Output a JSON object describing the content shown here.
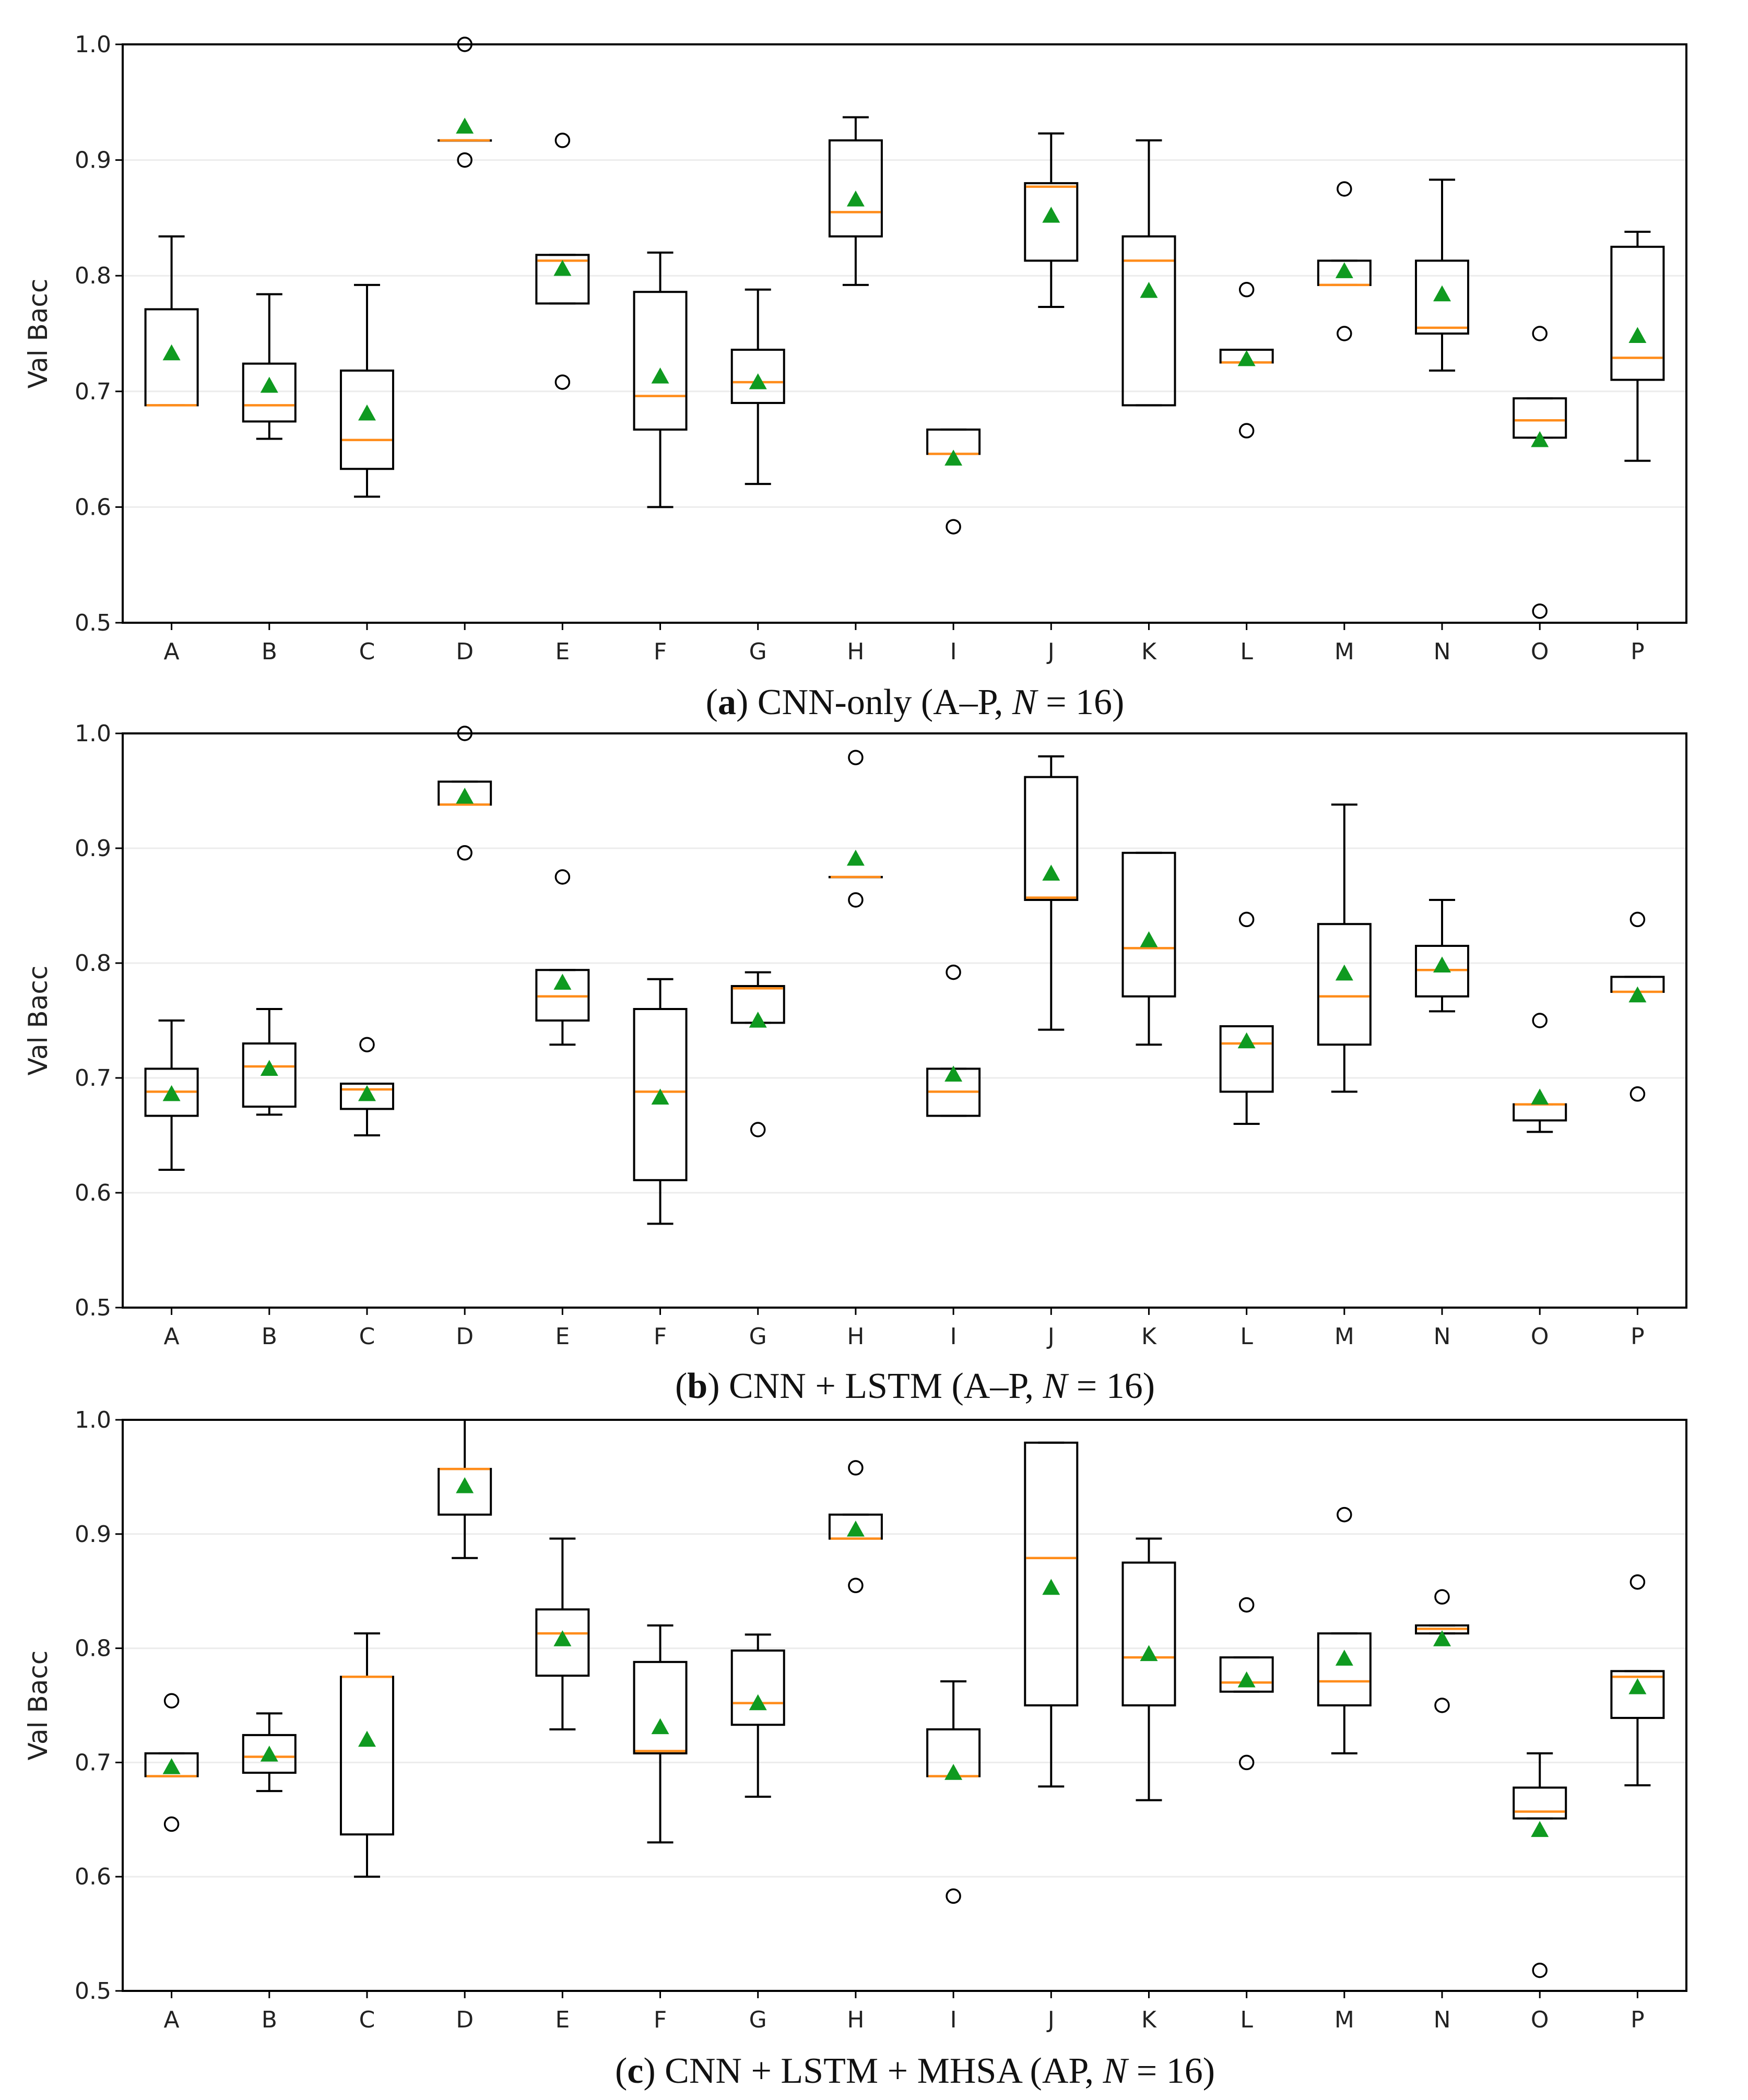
{
  "chart_data": [
    {
      "type": "box",
      "panel": "a",
      "caption": {
        "open": "(",
        "letter": "a",
        "rest": ") CNN-only (A–P, ",
        "n": "N",
        "tail": " = 16)"
      },
      "ylabel": "Val Bacc",
      "ylim": [
        0.5,
        1.0
      ],
      "yticks": [
        "0.5",
        "0.6",
        "0.7",
        "0.8",
        "0.9",
        "1.0"
      ],
      "categories": [
        "A",
        "B",
        "C",
        "D",
        "E",
        "F",
        "G",
        "H",
        "I",
        "J",
        "K",
        "L",
        "M",
        "N",
        "O",
        "P"
      ],
      "boxes": [
        {
          "q1": 0.688,
          "med": 0.688,
          "q3": 0.771,
          "wlo": 0.688,
          "whi": 0.834,
          "mean": 0.733,
          "fliers": []
        },
        {
          "q1": 0.674,
          "med": 0.688,
          "q3": 0.724,
          "wlo": 0.659,
          "whi": 0.784,
          "mean": 0.705,
          "fliers": []
        },
        {
          "q1": 0.633,
          "med": 0.658,
          "q3": 0.718,
          "wlo": 0.609,
          "whi": 0.792,
          "mean": 0.681,
          "fliers": []
        },
        {
          "q1": 0.917,
          "med": 0.917,
          "q3": 0.917,
          "wlo": 0.917,
          "whi": 0.917,
          "mean": 0.929,
          "fliers": [
            1.0,
            0.9
          ]
        },
        {
          "q1": 0.776,
          "med": 0.813,
          "q3": 0.818,
          "wlo": 0.776,
          "whi": 0.818,
          "mean": 0.806,
          "fliers": [
            0.917,
            0.708
          ]
        },
        {
          "q1": 0.667,
          "med": 0.696,
          "q3": 0.786,
          "wlo": 0.6,
          "whi": 0.82,
          "mean": 0.713,
          "fliers": []
        },
        {
          "q1": 0.69,
          "med": 0.708,
          "q3": 0.736,
          "wlo": 0.62,
          "whi": 0.788,
          "mean": 0.708,
          "fliers": []
        },
        {
          "q1": 0.834,
          "med": 0.855,
          "q3": 0.917,
          "wlo": 0.792,
          "whi": 0.937,
          "mean": 0.866,
          "fliers": []
        },
        {
          "q1": 0.646,
          "med": 0.646,
          "q3": 0.667,
          "wlo": 0.646,
          "whi": 0.667,
          "mean": 0.642,
          "fliers": [
            0.583
          ]
        },
        {
          "q1": 0.813,
          "med": 0.877,
          "q3": 0.88,
          "wlo": 0.773,
          "whi": 0.923,
          "mean": 0.852,
          "fliers": []
        },
        {
          "q1": 0.688,
          "med": 0.813,
          "q3": 0.834,
          "wlo": 0.688,
          "whi": 0.917,
          "mean": 0.787,
          "fliers": []
        },
        {
          "q1": 0.725,
          "med": 0.725,
          "q3": 0.736,
          "wlo": 0.725,
          "whi": 0.736,
          "mean": 0.728,
          "fliers": [
            0.788,
            0.666
          ]
        },
        {
          "q1": 0.792,
          "med": 0.792,
          "q3": 0.813,
          "wlo": 0.792,
          "whi": 0.813,
          "mean": 0.804,
          "fliers": [
            0.875,
            0.75
          ]
        },
        {
          "q1": 0.75,
          "med": 0.755,
          "q3": 0.813,
          "wlo": 0.718,
          "whi": 0.883,
          "mean": 0.784,
          "fliers": []
        },
        {
          "q1": 0.66,
          "med": 0.675,
          "q3": 0.694,
          "wlo": 0.66,
          "whi": 0.694,
          "mean": 0.658,
          "fliers": [
            0.75,
            0.51
          ]
        },
        {
          "q1": 0.71,
          "med": 0.729,
          "q3": 0.825,
          "wlo": 0.64,
          "whi": 0.838,
          "mean": 0.748,
          "fliers": []
        }
      ]
    },
    {
      "type": "box",
      "panel": "b",
      "caption": {
        "open": "(",
        "letter": "b",
        "rest": ") CNN + LSTM (A–P, ",
        "n": "N",
        "tail": " = 16)"
      },
      "ylabel": "Val Bacc",
      "ylim": [
        0.5,
        1.0
      ],
      "yticks": [
        "0.5",
        "0.6",
        "0.7",
        "0.8",
        "0.9",
        "1.0"
      ],
      "categories": [
        "A",
        "B",
        "C",
        "D",
        "E",
        "F",
        "G",
        "H",
        "I",
        "J",
        "K",
        "L",
        "M",
        "N",
        "O",
        "P"
      ],
      "boxes": [
        {
          "q1": 0.667,
          "med": 0.688,
          "q3": 0.708,
          "wlo": 0.62,
          "whi": 0.75,
          "mean": 0.686,
          "fliers": []
        },
        {
          "q1": 0.675,
          "med": 0.71,
          "q3": 0.73,
          "wlo": 0.668,
          "whi": 0.76,
          "mean": 0.708,
          "fliers": []
        },
        {
          "q1": 0.673,
          "med": 0.69,
          "q3": 0.695,
          "wlo": 0.65,
          "whi": 0.695,
          "mean": 0.686,
          "fliers": [
            0.729
          ]
        },
        {
          "q1": 0.938,
          "med": 0.938,
          "q3": 0.958,
          "wlo": 0.938,
          "whi": 0.958,
          "mean": 0.945,
          "fliers": [
            1.0,
            0.896
          ]
        },
        {
          "q1": 0.75,
          "med": 0.771,
          "q3": 0.794,
          "wlo": 0.729,
          "whi": 0.794,
          "mean": 0.783,
          "fliers": [
            0.875
          ]
        },
        {
          "q1": 0.611,
          "med": 0.688,
          "q3": 0.76,
          "wlo": 0.573,
          "whi": 0.786,
          "mean": 0.683,
          "fliers": []
        },
        {
          "q1": 0.748,
          "med": 0.778,
          "q3": 0.78,
          "wlo": 0.748,
          "whi": 0.792,
          "mean": 0.75,
          "fliers": [
            0.655
          ]
        },
        {
          "q1": 0.875,
          "med": 0.875,
          "q3": 0.875,
          "wlo": 0.875,
          "whi": 0.875,
          "mean": 0.891,
          "fliers": [
            0.979,
            0.855
          ]
        },
        {
          "q1": 0.667,
          "med": 0.688,
          "q3": 0.708,
          "wlo": 0.667,
          "whi": 0.708,
          "mean": 0.703,
          "fliers": [
            0.792
          ]
        },
        {
          "q1": 0.855,
          "med": 0.857,
          "q3": 0.962,
          "wlo": 0.742,
          "whi": 0.98,
          "mean": 0.878,
          "fliers": []
        },
        {
          "q1": 0.771,
          "med": 0.813,
          "q3": 0.896,
          "wlo": 0.729,
          "whi": 0.896,
          "mean": 0.82,
          "fliers": []
        },
        {
          "q1": 0.688,
          "med": 0.73,
          "q3": 0.745,
          "wlo": 0.66,
          "whi": 0.745,
          "mean": 0.732,
          "fliers": [
            0.838
          ]
        },
        {
          "q1": 0.729,
          "med": 0.771,
          "q3": 0.834,
          "wlo": 0.688,
          "whi": 0.938,
          "mean": 0.791,
          "fliers": []
        },
        {
          "q1": 0.771,
          "med": 0.794,
          "q3": 0.815,
          "wlo": 0.758,
          "whi": 0.855,
          "mean": 0.798,
          "fliers": []
        },
        {
          "q1": 0.663,
          "med": 0.677,
          "q3": 0.677,
          "wlo": 0.653,
          "whi": 0.677,
          "mean": 0.683,
          "fliers": [
            0.75
          ]
        },
        {
          "q1": 0.775,
          "med": 0.775,
          "q3": 0.788,
          "wlo": 0.775,
          "whi": 0.788,
          "mean": 0.772,
          "fliers": [
            0.838,
            0.686
          ]
        }
      ]
    },
    {
      "type": "box",
      "panel": "c",
      "caption": {
        "open": "(",
        "letter": "c",
        "rest": ") CNN + LSTM + MHSA (AP, ",
        "n": "N",
        "tail": " = 16)"
      },
      "ylabel": "Val Bacc",
      "ylim": [
        0.5,
        1.0
      ],
      "yticks": [
        "0.5",
        "0.6",
        "0.7",
        "0.8",
        "0.9",
        "1.0"
      ],
      "categories": [
        "A",
        "B",
        "C",
        "D",
        "E",
        "F",
        "G",
        "H",
        "I",
        "J",
        "K",
        "L",
        "M",
        "N",
        "O",
        "P"
      ],
      "boxes": [
        {
          "q1": 0.688,
          "med": 0.688,
          "q3": 0.708,
          "wlo": 0.688,
          "whi": 0.708,
          "mean": 0.696,
          "fliers": [
            0.754,
            0.646
          ]
        },
        {
          "q1": 0.691,
          "med": 0.705,
          "q3": 0.724,
          "wlo": 0.675,
          "whi": 0.743,
          "mean": 0.707,
          "fliers": []
        },
        {
          "q1": 0.637,
          "med": 0.775,
          "q3": 0.775,
          "wlo": 0.6,
          "whi": 0.813,
          "mean": 0.72,
          "fliers": []
        },
        {
          "q1": 0.917,
          "med": 0.957,
          "q3": 0.957,
          "wlo": 0.879,
          "whi": 1.0,
          "mean": 0.942,
          "fliers": []
        },
        {
          "q1": 0.776,
          "med": 0.813,
          "q3": 0.834,
          "wlo": 0.729,
          "whi": 0.896,
          "mean": 0.808,
          "fliers": []
        },
        {
          "q1": 0.708,
          "med": 0.71,
          "q3": 0.788,
          "wlo": 0.63,
          "whi": 0.82,
          "mean": 0.731,
          "fliers": []
        },
        {
          "q1": 0.733,
          "med": 0.752,
          "q3": 0.798,
          "wlo": 0.67,
          "whi": 0.812,
          "mean": 0.752,
          "fliers": []
        },
        {
          "q1": 0.896,
          "med": 0.896,
          "q3": 0.917,
          "wlo": 0.896,
          "whi": 0.917,
          "mean": 0.904,
          "fliers": [
            0.958,
            0.855
          ]
        },
        {
          "q1": 0.688,
          "med": 0.688,
          "q3": 0.729,
          "wlo": 0.688,
          "whi": 0.771,
          "mean": 0.691,
          "fliers": [
            0.583
          ]
        },
        {
          "q1": 0.75,
          "med": 0.879,
          "q3": 0.98,
          "wlo": 0.679,
          "whi": 0.98,
          "mean": 0.853,
          "fliers": []
        },
        {
          "q1": 0.75,
          "med": 0.792,
          "q3": 0.875,
          "wlo": 0.667,
          "whi": 0.896,
          "mean": 0.795,
          "fliers": []
        },
        {
          "q1": 0.762,
          "med": 0.77,
          "q3": 0.792,
          "wlo": 0.762,
          "whi": 0.792,
          "mean": 0.772,
          "fliers": [
            0.838,
            0.7
          ]
        },
        {
          "q1": 0.75,
          "med": 0.771,
          "q3": 0.813,
          "wlo": 0.708,
          "whi": 0.813,
          "mean": 0.791,
          "fliers": [
            0.917
          ]
        },
        {
          "q1": 0.813,
          "med": 0.817,
          "q3": 0.82,
          "wlo": 0.813,
          "whi": 0.82,
          "mean": 0.808,
          "fliers": [
            0.845,
            0.75
          ]
        },
        {
          "q1": 0.651,
          "med": 0.657,
          "q3": 0.678,
          "wlo": 0.651,
          "whi": 0.708,
          "mean": 0.641,
          "fliers": [
            0.518
          ]
        },
        {
          "q1": 0.739,
          "med": 0.775,
          "q3": 0.78,
          "wlo": 0.68,
          "whi": 0.78,
          "mean": 0.766,
          "fliers": [
            0.858
          ]
        }
      ]
    }
  ]
}
